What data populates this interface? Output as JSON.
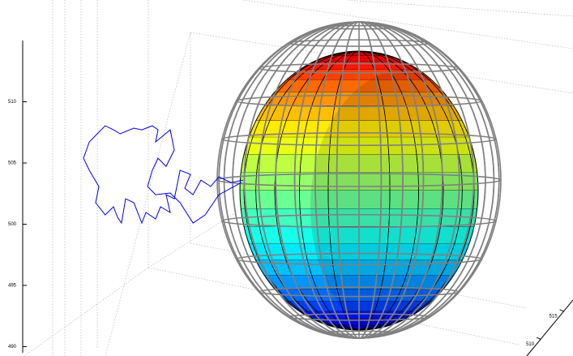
{
  "chart_data": {
    "type": "line3d",
    "zlim": [
      489.5,
      515
    ],
    "zticks": [
      490,
      495,
      500,
      505,
      510
    ],
    "xlim": [
      495,
      515
    ],
    "ylim": [
      507,
      517
    ],
    "yticks": [
      510,
      515
    ],
    "grid": true,
    "series": [
      {
        "color": "#0000ee",
        "x": [
          503.01,
          502.57,
          502.13,
          501.83,
          501.48,
          501.19,
          500.89,
          501.1,
          500.72,
          500.51,
          500.21,
          500.36,
          500.01,
          499.83,
          499.48,
          499.33,
          499.04,
          498.74,
          498.59,
          498.45,
          498.3,
          498.0,
          497.65,
          497.77,
          497.42,
          497.21,
          497.42,
          497.71,
          498.0,
          498.3,
          498.54,
          499.04,
          499.33,
          499.71,
          499.92,
          499.83,
          500.01,
          500.36,
          500.51,
          500.21,
          499.92,
          499.71,
          499.54,
          499.83,
          500.36,
          500.72,
          501.19,
          501.63,
          502.13,
          502.57,
          502.95
        ],
        "z": [
          503.6,
          503.4,
          503.87,
          503.08,
          503.6,
          502.41,
          502.94,
          504.07,
          504.4,
          502.08,
          502.41,
          500.96,
          501.42,
          500.43,
          500.96,
          500.1,
          501.75,
          502.08,
          500.1,
          500.56,
          501.42,
          500.76,
          501.75,
          503.08,
          504.4,
          505.39,
          506.72,
          507.38,
          508.04,
          507.71,
          507.38,
          507.85,
          507.71,
          508.04,
          507.71,
          506.72,
          507.05,
          507.71,
          506.06,
          504.73,
          505.39,
          504.4,
          503.08,
          502.41,
          502.55,
          501.75,
          500.1,
          500.76,
          502.41,
          502.94,
          503.4
        ]
      }
    ]
  }
}
